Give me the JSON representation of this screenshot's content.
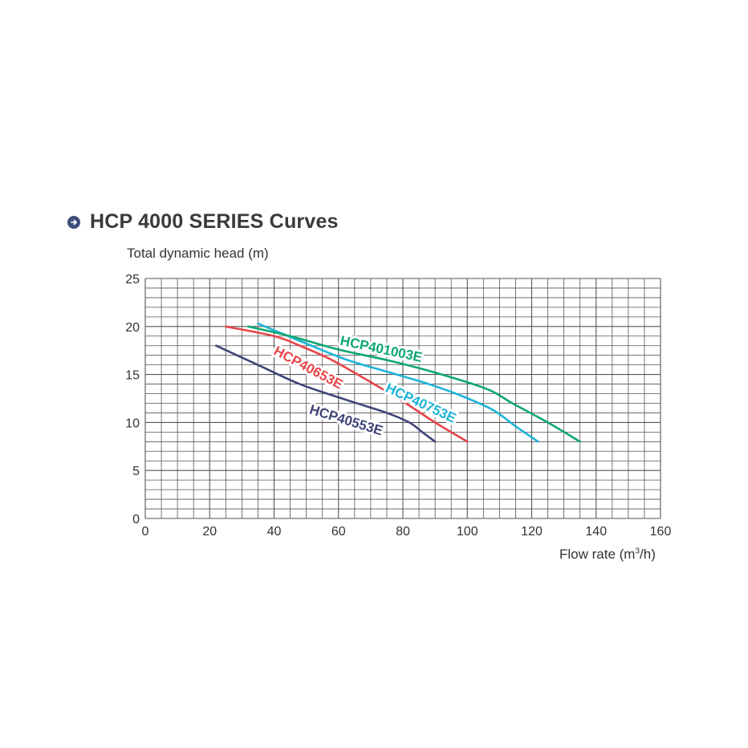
{
  "header": {
    "title": "HCP 4000 SERIES Curves",
    "bullet_icon": "arrow-right-circle-icon"
  },
  "chart_data": {
    "type": "line",
    "title": "HCP 4000 SERIES Curves",
    "ylabel": "Total dynamic head (m)",
    "xlabel_prefix": "Flow rate (m",
    "xlabel_sup": "3",
    "xlabel_suffix": "/h)",
    "xlim": [
      0,
      160
    ],
    "ylim": [
      0,
      25
    ],
    "x_ticks": [
      0,
      20,
      40,
      60,
      80,
      100,
      120,
      140,
      160
    ],
    "y_ticks": [
      0,
      5,
      10,
      15,
      20,
      25
    ],
    "grid": true,
    "series": [
      {
        "name": "HCP40553E",
        "color": "#3f4578",
        "points": [
          [
            22,
            18
          ],
          [
            35,
            16
          ],
          [
            48,
            14
          ],
          [
            62,
            12.4
          ],
          [
            75,
            11
          ],
          [
            82,
            10
          ],
          [
            86,
            9
          ],
          [
            90,
            8
          ]
        ]
      },
      {
        "name": "HCP40653E",
        "color": "#e84649",
        "points": [
          [
            25,
            20
          ],
          [
            40,
            19
          ],
          [
            48,
            18
          ],
          [
            58,
            16.5
          ],
          [
            70,
            14.2
          ],
          [
            80,
            12.2
          ],
          [
            90,
            10
          ],
          [
            100,
            8
          ]
        ]
      },
      {
        "name": "HCP40753E",
        "color": "#1eb4d8",
        "points": [
          [
            35,
            20.3
          ],
          [
            48,
            18.5
          ],
          [
            62,
            16.6
          ],
          [
            75,
            15.3
          ],
          [
            88,
            14
          ],
          [
            98,
            12.8
          ],
          [
            108,
            11.3
          ],
          [
            115,
            9.6
          ],
          [
            122,
            8
          ]
        ]
      },
      {
        "name": "HCP401003E",
        "color": "#0ea872",
        "points": [
          [
            32,
            20
          ],
          [
            45,
            19
          ],
          [
            60,
            17.6
          ],
          [
            75,
            16.5
          ],
          [
            90,
            15.2
          ],
          [
            106,
            13.5
          ],
          [
            114,
            12
          ],
          [
            125,
            10
          ],
          [
            135,
            8
          ]
        ]
      }
    ]
  }
}
